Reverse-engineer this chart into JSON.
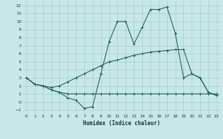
{
  "xlabel": "Humidex (Indice chaleur)",
  "background_color": "#c8e8e8",
  "grid_color": "#a0cccc",
  "line_color": "#206060",
  "xlim": [
    -0.5,
    23.5
  ],
  "ylim": [
    -1.5,
    12.5
  ],
  "xticks": [
    0,
    1,
    2,
    3,
    4,
    5,
    6,
    7,
    8,
    9,
    10,
    11,
    12,
    13,
    14,
    15,
    16,
    17,
    18,
    19,
    20,
    21,
    22,
    23
  ],
  "yticks": [
    -1,
    0,
    1,
    2,
    3,
    4,
    5,
    6,
    7,
    8,
    9,
    10,
    11,
    12
  ],
  "line1_x": [
    0,
    1,
    2,
    3,
    4,
    5,
    6,
    7,
    8,
    9,
    10,
    11,
    12,
    13,
    14,
    15,
    16,
    17,
    18,
    19,
    20,
    21,
    22,
    23
  ],
  "line1_y": [
    3.0,
    2.2,
    2.0,
    1.5,
    1.2,
    1.0,
    1.0,
    1.0,
    1.0,
    1.0,
    1.0,
    1.0,
    1.0,
    1.0,
    1.0,
    1.0,
    1.0,
    1.0,
    1.0,
    1.0,
    1.0,
    1.0,
    1.0,
    1.0
  ],
  "line2_x": [
    0,
    1,
    2,
    3,
    4,
    5,
    6,
    7,
    8,
    9,
    10,
    11,
    12,
    13,
    14,
    15,
    16,
    17,
    18,
    19,
    20,
    21,
    22,
    23
  ],
  "line2_y": [
    3.0,
    2.2,
    2.0,
    1.8,
    2.0,
    2.5,
    3.0,
    3.5,
    4.0,
    4.5,
    5.0,
    5.2,
    5.5,
    5.8,
    6.0,
    6.2,
    6.3,
    6.4,
    6.5,
    6.5,
    3.5,
    3.0,
    1.2,
    0.8
  ],
  "line3_x": [
    0,
    1,
    2,
    3,
    4,
    5,
    6,
    7,
    8,
    9,
    10,
    11,
    12,
    13,
    14,
    15,
    16,
    17,
    18,
    19,
    20,
    21,
    22,
    23
  ],
  "line3_y": [
    3.0,
    2.2,
    2.0,
    1.5,
    1.2,
    0.5,
    0.2,
    -0.8,
    -0.6,
    3.5,
    7.5,
    10.0,
    10.0,
    7.2,
    9.3,
    11.5,
    11.5,
    11.8,
    8.5,
    3.0,
    3.5,
    3.0,
    1.2,
    0.8
  ]
}
